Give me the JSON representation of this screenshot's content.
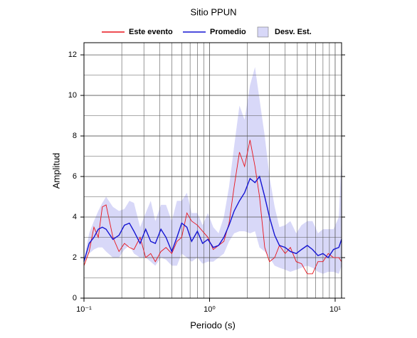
{
  "chart_data": {
    "type": "line",
    "title": "Sitio PPUN",
    "xlabel": "Periodo (s)",
    "ylabel": "Amplitud",
    "log_x": true,
    "grid": true,
    "xlim": [
      0.1,
      11.25
    ],
    "ylim": [
      0,
      12.6
    ],
    "xticks": [
      {
        "value": 0.1,
        "label": "10⁻¹"
      },
      {
        "value": 1,
        "label": "10⁰"
      },
      {
        "value": 10,
        "label": "10¹"
      }
    ],
    "xminorticks": [
      0.2,
      0.3,
      0.4,
      0.5,
      0.6,
      0.7,
      0.8,
      0.9,
      2,
      3,
      4,
      5,
      6,
      7,
      8,
      9
    ],
    "yticks": [
      0,
      2,
      4,
      6,
      8,
      10,
      12
    ],
    "yminorticks": [
      1,
      3,
      5,
      7,
      9,
      11
    ],
    "x": [
      0.1,
      0.11,
      0.12,
      0.13,
      0.14,
      0.15,
      0.17,
      0.19,
      0.21,
      0.23,
      0.25,
      0.28,
      0.31,
      0.34,
      0.37,
      0.41,
      0.45,
      0.5,
      0.55,
      0.6,
      0.66,
      0.72,
      0.8,
      0.88,
      0.97,
      1.07,
      1.18,
      1.3,
      1.43,
      1.57,
      1.73,
      1.9,
      2.1,
      2.3,
      2.5,
      2.75,
      3.0,
      3.3,
      3.6,
      4.0,
      4.4,
      4.9,
      5.4,
      6.0,
      6.6,
      7.3,
      8.0,
      8.8,
      9.7,
      10.7,
      11.25
    ],
    "series": [
      {
        "name": "Este evento",
        "color": "#e8141c",
        "values": [
          1.6,
          2.3,
          3.5,
          3.0,
          4.5,
          4.6,
          3.0,
          2.3,
          2.7,
          2.5,
          2.4,
          3.0,
          2.0,
          2.2,
          1.8,
          2.3,
          2.5,
          2.2,
          2.8,
          3.0,
          4.2,
          3.8,
          3.6,
          3.3,
          3.0,
          2.4,
          2.6,
          2.8,
          3.7,
          5.5,
          7.2,
          6.5,
          7.8,
          6.5,
          5.0,
          2.5,
          1.8,
          2.0,
          2.6,
          2.2,
          2.5,
          1.8,
          1.7,
          1.2,
          1.2,
          1.8,
          1.8,
          2.2,
          2.0,
          2.0,
          1.8
        ]
      },
      {
        "name": "Promedio",
        "color": "#1414d2",
        "values": [
          1.8,
          2.7,
          3.0,
          3.4,
          3.5,
          3.4,
          2.9,
          3.1,
          3.6,
          3.7,
          3.3,
          2.7,
          3.4,
          2.8,
          2.7,
          3.4,
          3.0,
          2.3,
          3.0,
          3.7,
          3.5,
          2.8,
          3.3,
          2.7,
          2.9,
          2.5,
          2.6,
          3.0,
          3.6,
          4.3,
          4.8,
          5.2,
          5.9,
          5.7,
          6.0,
          5.0,
          4.0,
          3.1,
          2.6,
          2.5,
          2.3,
          2.2,
          2.4,
          2.6,
          2.4,
          2.1,
          2.2,
          2.0,
          2.4,
          2.5,
          2.9
        ]
      },
      {
        "name": "Desv. Est.",
        "color": "#d8d8f8",
        "lower": [
          1.8,
          2.2,
          2.4,
          2.5,
          2.5,
          2.3,
          2.0,
          2.0,
          2.4,
          2.6,
          2.2,
          2.0,
          2.0,
          1.8,
          1.6,
          2.0,
          1.9,
          1.6,
          1.6,
          2.2,
          2.0,
          1.8,
          2.0,
          1.7,
          1.8,
          1.8,
          2.0,
          2.2,
          2.8,
          3.2,
          3.3,
          3.3,
          3.2,
          3.3,
          2.5,
          2.3,
          2.0,
          1.6,
          1.5,
          1.4,
          1.3,
          1.4,
          1.5,
          1.6,
          1.5,
          1.3,
          1.2,
          1.3,
          1.3,
          1.2,
          1.6
        ],
        "upper": [
          1.9,
          3.2,
          3.8,
          4.3,
          4.7,
          5.0,
          4.5,
          4.3,
          4.4,
          4.8,
          4.7,
          3.5,
          4.2,
          4.8,
          3.8,
          4.6,
          4.6,
          3.8,
          4.8,
          4.8,
          5.2,
          4.2,
          4.2,
          3.6,
          4.2,
          3.5,
          3.2,
          4.0,
          5.5,
          7.5,
          9.5,
          8.8,
          10.5,
          11.4,
          9.8,
          8.0,
          6.0,
          4.5,
          3.5,
          3.6,
          3.8,
          3.2,
          3.6,
          3.8,
          3.8,
          3.2,
          3.4,
          3.4,
          3.4,
          4.0,
          7.0
        ]
      }
    ]
  }
}
